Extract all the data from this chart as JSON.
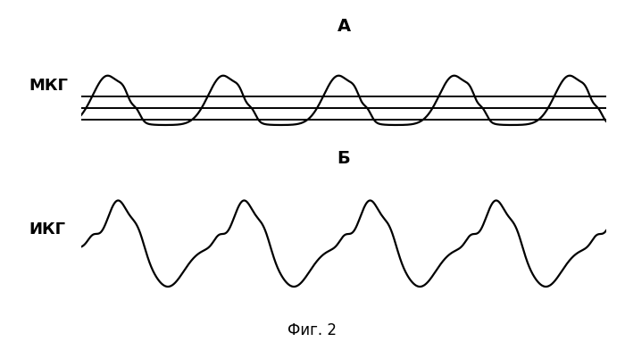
{
  "title_A": "А",
  "title_B": "Б",
  "label_A": "МКГ",
  "label_B": "ИКГ",
  "caption": "Фиг. 2",
  "bg_color": "#ffffff",
  "line_color": "#000000",
  "linewidth_signal": 1.6,
  "linewidth_hlines": 1.4,
  "fig_width": 7.0,
  "fig_height": 3.83,
  "hline_y": [
    0.0,
    0.08,
    0.16
  ],
  "mkg_baseline": 0.08,
  "mkg_amplitude": 0.22,
  "mkg_trough": -0.12,
  "mkg_period": 2.2,
  "ikg_period": 2.4
}
